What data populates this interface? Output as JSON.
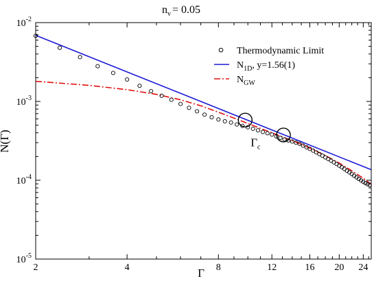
{
  "chart_data": {
    "type": "line",
    "title": "n",
    "title_sub": "v",
    "title_rest": "= 0.05",
    "xlabel": "Γ",
    "ylabel": "N(Γ)",
    "xscale": "log",
    "yscale": "log",
    "xlim": [
      2,
      25.5
    ],
    "ylim": [
      1e-05,
      0.01
    ],
    "x_ticks": [
      2,
      4,
      8,
      12,
      16,
      20,
      24
    ],
    "x_tick_labels": [
      "2",
      "4",
      "8",
      "12",
      "16",
      "20",
      "24"
    ],
    "y_ticks": [
      1e-05,
      0.0001,
      0.001,
      0.01
    ],
    "y_tick_labels": [
      {
        "base": "10",
        "exp": "-5"
      },
      {
        "base": "10",
        "exp": "-4"
      },
      {
        "base": "10",
        "exp": "-3"
      },
      {
        "base": "10",
        "exp": "-2"
      }
    ],
    "legend": {
      "position": "top-right",
      "entries": [
        {
          "label": "Thermodynamic Limit",
          "marker": "open-circle",
          "color": "#000000"
        },
        {
          "main": "N",
          "sub": "1D",
          "rest": ", y=1.56(1)",
          "style": "solid",
          "color": "#1a1ad6"
        },
        {
          "main": "N",
          "sub": "GW",
          "style": "dash-dot",
          "color": "#e0100f"
        }
      ]
    },
    "series": [
      {
        "key": "thermo",
        "style": "markers",
        "color": "#000000",
        "x": [
          2,
          2.4,
          2.8,
          3.2,
          3.6,
          4,
          4.4,
          4.8,
          5.2,
          5.6,
          6,
          6.4,
          6.8,
          7.2,
          7.6,
          8,
          8.4,
          8.8,
          9.2,
          9.6,
          10,
          10.4,
          10.8,
          11.2,
          11.6,
          12,
          12.4,
          12.8,
          13.2,
          13.6,
          14,
          14.4,
          14.8,
          15.2,
          15.6,
          16,
          16.4,
          16.8,
          17.2,
          17.6,
          18,
          18.4,
          18.8,
          19.2,
          19.6,
          20,
          20.4,
          20.8,
          21.2,
          21.6,
          22,
          22.4,
          22.8,
          23.2,
          23.6,
          24,
          24.4,
          24.8,
          25.2
        ],
        "y": [
          0.0068,
          0.0048,
          0.00365,
          0.0028,
          0.0023,
          0.0019,
          0.00158,
          0.00135,
          0.00118,
          0.00105,
          0.00093,
          0.00083,
          0.00075,
          0.00068,
          0.00063,
          0.00059,
          0.00056,
          0.00054,
          0.00051,
          0.00049,
          0.00047,
          0.00045,
          0.00043,
          0.00041,
          0.000395,
          0.00038,
          0.00036,
          0.000345,
          0.00033,
          0.00032,
          0.00031,
          0.0003,
          0.00029,
          0.000275,
          0.000262,
          0.00025,
          0.000238,
          0.000226,
          0.000215,
          0.000205,
          0.000195,
          0.000186,
          0.000177,
          0.000169,
          0.000161,
          0.000153,
          0.000146,
          0.000139,
          0.000132,
          0.000126,
          0.00012,
          0.000114,
          0.000109,
          0.000104,
          9.95e-05,
          9.55e-05,
          9.2e-05,
          8.9e-05,
          8.7e-05
        ]
      },
      {
        "key": "n1d",
        "style": "solid",
        "color": "#1a1ad6",
        "x": [
          2,
          25.5
        ],
        "y": [
          0.0069,
          0.000136
        ]
      },
      {
        "key": "ngw",
        "style": "dash-dot",
        "color": "#e0100f",
        "x": [
          2,
          3,
          4,
          5,
          6,
          7,
          8,
          9,
          10,
          11,
          12,
          13,
          14,
          15,
          16,
          18,
          20,
          22,
          24,
          25.5
        ],
        "y": [
          0.0018,
          0.0016,
          0.00141,
          0.00123,
          0.00105,
          0.00088,
          0.00073,
          0.000615,
          0.000525,
          0.000455,
          0.0004,
          0.000355,
          0.000318,
          0.000286,
          0.000256,
          0.000206,
          0.000165,
          0.000132,
          0.000106,
          8.9e-05
        ]
      }
    ],
    "annotations": [
      {
        "type": "circle",
        "x": 9.8,
        "y": 0.00058
      },
      {
        "type": "circle",
        "x": 13.1,
        "y": 0.000375
      },
      {
        "type": "label",
        "main": "Γ",
        "sub": "c",
        "x": 10.6,
        "y": 0.00027
      }
    ]
  }
}
